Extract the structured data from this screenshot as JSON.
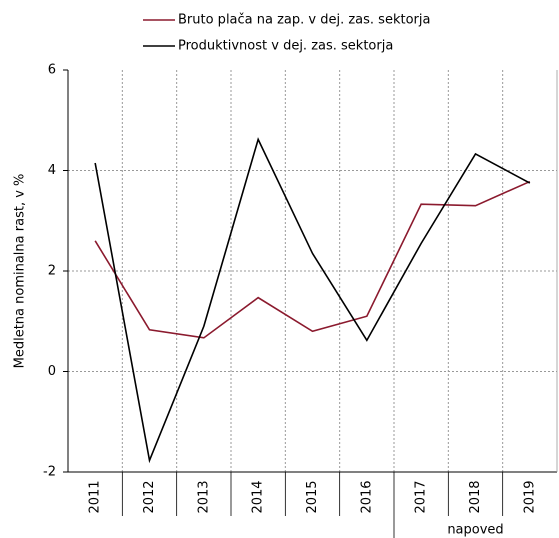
{
  "chart_data": {
    "type": "line",
    "y_label": "Medletna nominalna rast, v %",
    "categories": [
      "2011",
      "2012",
      "2013",
      "2014",
      "2015",
      "2016",
      "2017",
      "2018",
      "2019"
    ],
    "series": [
      {
        "name": "Bruto plača na zap. v dej. zas. sektorja",
        "color": "#8b1a2e",
        "values": [
          2.6,
          0.83,
          0.67,
          1.47,
          0.8,
          1.1,
          3.33,
          3.3,
          3.78
        ]
      },
      {
        "name": "Produktivnost v dej. zas. sektorja",
        "color": "#000000",
        "values": [
          4.15,
          -1.77,
          0.9,
          4.62,
          2.35,
          0.62,
          2.55,
          4.33,
          3.75
        ]
      }
    ],
    "ylim": [
      -2,
      6
    ],
    "yticks": [
      -2,
      0,
      2,
      4,
      6
    ],
    "grid": true,
    "annotation": "napoved"
  }
}
